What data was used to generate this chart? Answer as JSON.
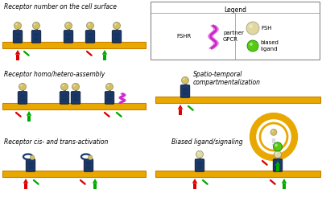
{
  "bg_color": "#ffffff",
  "membrane_color": "#E8A800",
  "membrane_edge_color": "#C88000",
  "receptor_body_color": "#1a3a6b",
  "receptor_head_color": "#d4c060",
  "partner_gpcr_color": "#cc22cc",
  "fsh_head_color": "#e0d8a0",
  "biased_ligand_color": "#55cc11",
  "red_color": "#dd0000",
  "green_color": "#00aa00",
  "panel_labels": [
    "Receptor number on the cell surface",
    "Receptor homo/hetero-assembly",
    "Receptor cis- and trans-activation",
    "Spatio-temporal\ncompartmentalization",
    "Biased ligand/signaling"
  ],
  "legend_title": "Legend",
  "legend_items": [
    "FSHR",
    "partner\nGPCR",
    "FSH",
    "biased\nligand"
  ]
}
